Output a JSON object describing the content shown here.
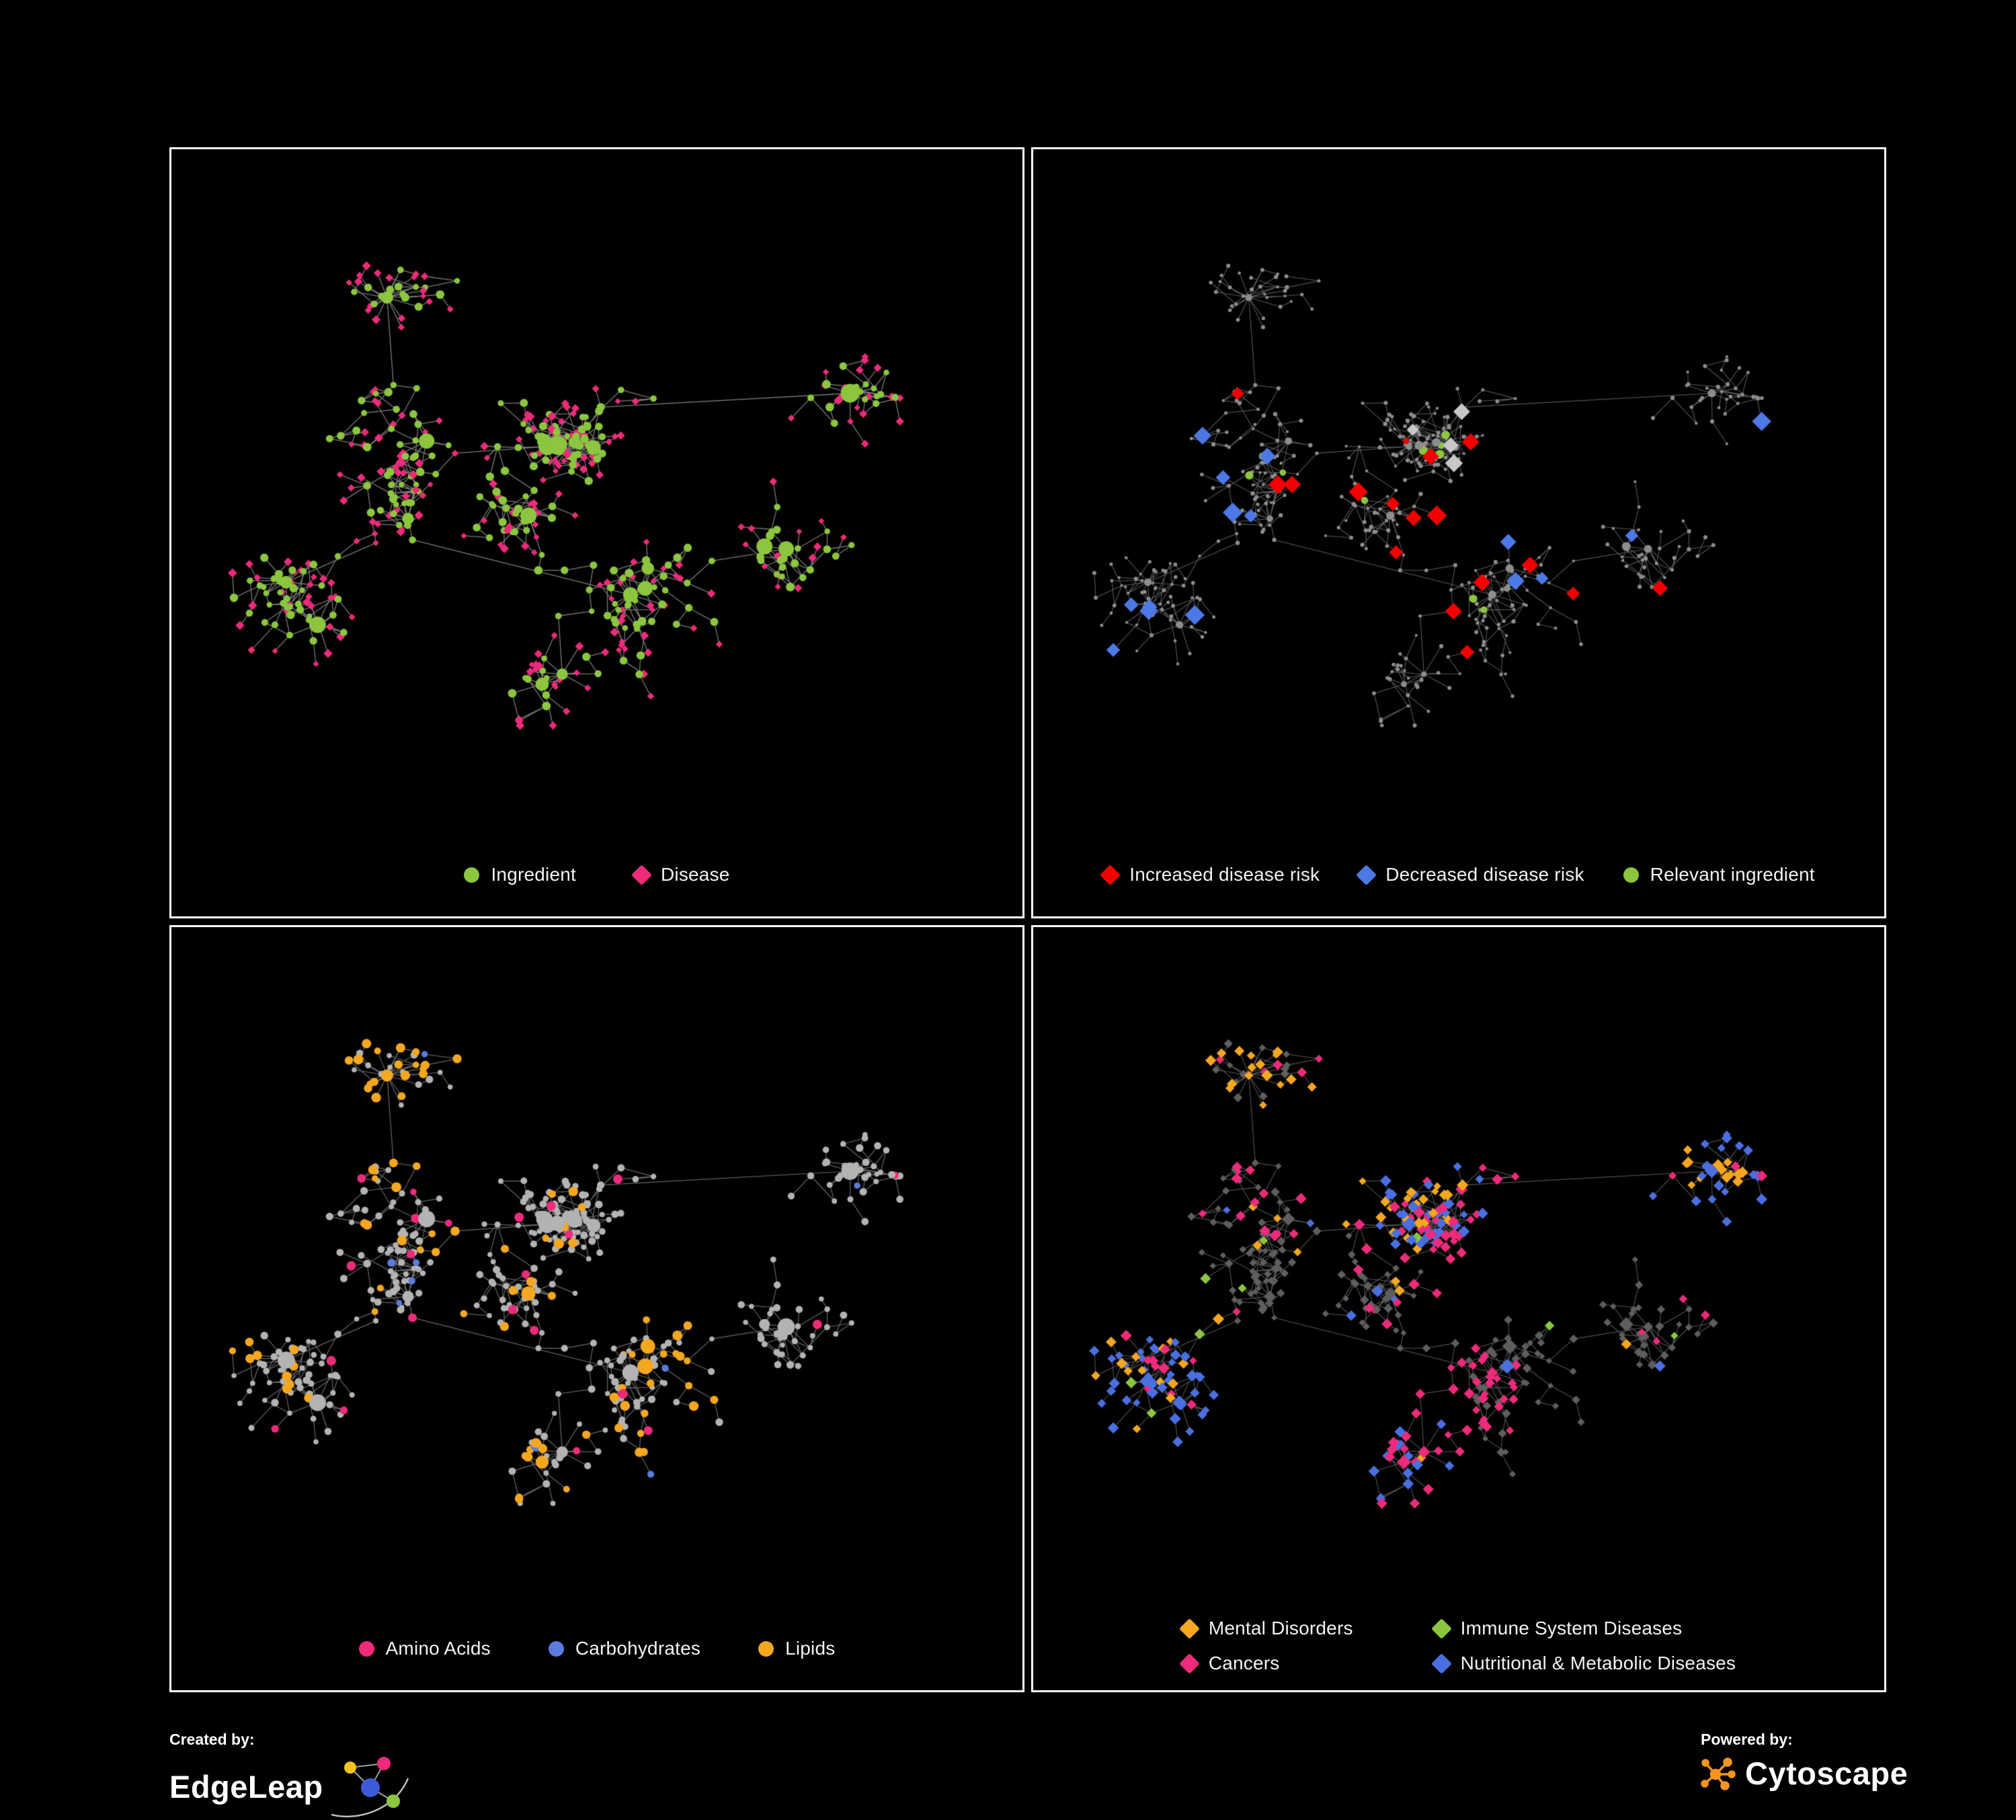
{
  "canvas_bg": "#000000",
  "network": {
    "seed": 14,
    "nodes": 520,
    "clusters": 13,
    "spread": 36,
    "hub_min_children": 5,
    "extra_edge_ratio": 0.05
  },
  "panels": [
    {
      "title": "ingredient-disease-network",
      "render": {
        "species_seed": 101,
        "edge_color": "#8f8f8f",
        "edge_width": 1.3,
        "edge_alpha": 0.85,
        "base": {
          "color": "#8cc63e",
          "shape": "circle",
          "r": 5
        },
        "hub": {
          "species": 1,
          "r": 12
        },
        "species": [
          {
            "key": "disease",
            "color": "#ee2a7b",
            "shape": "diamond",
            "r": 4.4,
            "share": 0.62,
            "mode": "leaf"
          },
          {
            "key": "ingredient",
            "color": "#8cc63e",
            "shape": "circle",
            "r": 5.2,
            "share": 0.38,
            "mode": "inner"
          }
        ]
      },
      "legend": {
        "items": [
          {
            "label": "Ingredient",
            "color": "#8cc63e",
            "shape": "circle"
          },
          {
            "label": "Disease",
            "color": "#ee2a7b",
            "shape": "diamond"
          }
        ]
      }
    },
    {
      "title": "disease-risk-network",
      "render": {
        "species_seed": 202,
        "edge_color": "#6e6e6e",
        "edge_width": 1.1,
        "edge_alpha": 0.8,
        "base": {
          "color": "#8d8d8d",
          "shape": "circle",
          "r": 2.6
        },
        "hub": {
          "species": null,
          "r": 5.5
        },
        "species": [
          {
            "key": "increased-risk",
            "color": "#f40000",
            "shape": "diamond",
            "r": 9.5,
            "share": 0.05,
            "mode": "center"
          },
          {
            "key": "decreased-risk",
            "color": "#4d79e6",
            "shape": "diamond",
            "r": 9.5,
            "share": 0.01,
            "mode": "cluster"
          },
          {
            "key": "relevant-ingredient",
            "color": "#8cc63e",
            "shape": "circle",
            "r": 5.5,
            "share": 0.04,
            "mode": "center"
          },
          {
            "key": "unchanged-risk",
            "color": "#c8c8c8",
            "shape": "diamond",
            "r": 9,
            "share": 0.012,
            "mode": "center"
          }
        ]
      },
      "legend": {
        "items": [
          {
            "label": "Increased disease risk",
            "color": "#f40000",
            "shape": "diamond"
          },
          {
            "label": "Decreased disease risk",
            "color": "#4d79e6",
            "shape": "diamond"
          },
          {
            "label": "Relevant ingredient",
            "color": "#8cc63e",
            "shape": "circle"
          }
        ]
      }
    },
    {
      "title": "macronutrient-network",
      "render": {
        "species_seed": 303,
        "edge_color": "#828282",
        "edge_width": 1.2,
        "edge_alpha": 0.8,
        "base": {
          "color": "#b3b3b3",
          "shape": "circle",
          "r": 4.6
        },
        "hub": {
          "species": null,
          "r": 11
        },
        "species": [
          {
            "key": "amino-acids",
            "color": "#ee2a7b",
            "shape": "circle",
            "r": 6,
            "share": 0.05,
            "mode": "scatter"
          },
          {
            "key": "carbohydrates",
            "color": "#5b7be0",
            "shape": "circle",
            "r": 5.5,
            "share": 0.025,
            "mode": "cluster"
          },
          {
            "key": "lipids",
            "color": "#f5a71f",
            "shape": "circle",
            "r": 6,
            "share": 0.11,
            "mode": "cluster"
          }
        ]
      },
      "legend": {
        "items": [
          {
            "label": "Amino Acids",
            "color": "#ee2a7b",
            "shape": "circle"
          },
          {
            "label": "Carbohydrates",
            "color": "#5b7be0",
            "shape": "circle"
          },
          {
            "label": "Lipids",
            "color": "#f5a71f",
            "shape": "circle"
          }
        ]
      }
    },
    {
      "title": "disease-category-network",
      "render": {
        "species_seed": 404,
        "edge_color": "#6a6a6a",
        "edge_width": 1.1,
        "edge_alpha": 0.8,
        "base": {
          "color": "#5e5e5e",
          "shape": "diamond",
          "r": 4.4
        },
        "hub": {
          "species": null,
          "r": 7.5
        },
        "species": [
          {
            "key": "mental-disorders",
            "color": "#f5a71f",
            "shape": "diamond",
            "r": 5.6,
            "share": 0.15,
            "mode": "cluster"
          },
          {
            "key": "immune-system-diseases",
            "color": "#8cc63e",
            "shape": "diamond",
            "r": 5.6,
            "share": 0.02,
            "mode": "scatter"
          },
          {
            "key": "cancers",
            "color": "#ee2a7b",
            "shape": "diamond",
            "r": 5.6,
            "share": 0.1,
            "mode": "cluster"
          },
          {
            "key": "nutritional-metabolic-diseases",
            "color": "#4a6fe0",
            "shape": "diamond",
            "r": 5.6,
            "share": 0.15,
            "mode": "cluster"
          }
        ]
      },
      "legend": {
        "layout": "grid",
        "items": [
          {
            "label": "Mental Disorders",
            "color": "#f5a71f",
            "shape": "diamond"
          },
          {
            "label": "Immune System Diseases",
            "color": "#8cc63e",
            "shape": "diamond"
          },
          {
            "label": "Cancers",
            "color": "#ee2a7b",
            "shape": "diamond"
          },
          {
            "label": "Nutritional & Metabolic Diseases",
            "color": "#4a6fe0",
            "shape": "diamond"
          }
        ]
      }
    }
  ],
  "footer": {
    "created_by": "Created by:",
    "edgeleap": {
      "name": "EdgeLeap",
      "colors": [
        "#f5c21c",
        "#ee2a7b",
        "#3b5bd9",
        "#8cc63e"
      ]
    },
    "powered_by": "Powered by:",
    "cytoscape": {
      "name": "Cytoscape",
      "color": "#f7941e"
    }
  }
}
